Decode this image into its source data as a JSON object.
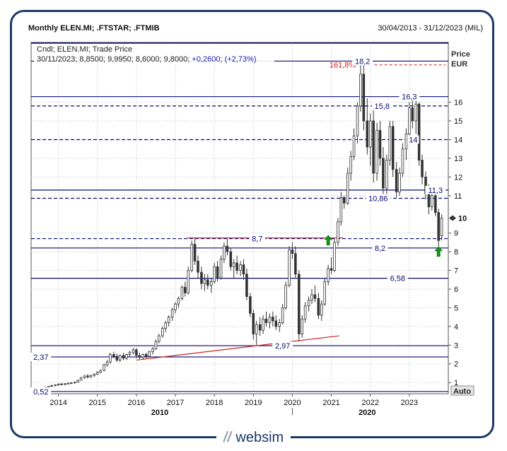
{
  "header": {
    "title": "Monthly ELEN.MI; .FTSTAR; .FTMIB",
    "date_range": "30/04/2013 - 31/12/2023 (MIL)"
  },
  "info": {
    "line1": "Cndl; ELEN.MI; Trade Price",
    "line2_prefix": "30/11/2023; 8,8500; 9,9950; 8,6000; 9,8000;",
    "line2_change": "+0,2600; (+2,73%)"
  },
  "axis": {
    "price_label": "Price",
    "currency_label": "EUR",
    "auto_label": "Auto",
    "last_price_label": "10",
    "y_ticks": [
      "1",
      "2",
      "3",
      "4",
      "5",
      "6",
      "7",
      "8",
      "9",
      "11",
      "12",
      "13",
      "14",
      "15",
      "16"
    ],
    "x_years": [
      "2014",
      "2015",
      "2016",
      "2017",
      "2018",
      "2019",
      "2020",
      "2021",
      "2022",
      "2023"
    ],
    "x_decades": [
      "2010",
      "2020"
    ]
  },
  "colors": {
    "frame": "#1d3a66",
    "level_line": "#0a0a7a",
    "fib_red": "#cc2222",
    "candle": "#333333",
    "arrow": "#1a8a1a"
  },
  "chart_data": {
    "type": "candlestick",
    "title": "Monthly ELEN.MI; .FTSTAR; .FTMIB",
    "ylabel": "Price EUR",
    "ylim": [
      0.4,
      19.2
    ],
    "xlim": [
      2013.3,
      2024.0
    ],
    "candles": [
      {
        "t": 2013.33,
        "o": 0.55,
        "h": 0.58,
        "l": 0.5,
        "c": 0.56
      },
      {
        "t": 2013.42,
        "o": 0.56,
        "h": 0.6,
        "l": 0.54,
        "c": 0.58
      },
      {
        "t": 2013.5,
        "o": 0.58,
        "h": 0.7,
        "l": 0.56,
        "c": 0.68
      },
      {
        "t": 2013.58,
        "o": 0.68,
        "h": 0.72,
        "l": 0.62,
        "c": 0.66
      },
      {
        "t": 2013.67,
        "o": 0.66,
        "h": 0.78,
        "l": 0.64,
        "c": 0.75
      },
      {
        "t": 2013.75,
        "o": 0.75,
        "h": 0.82,
        "l": 0.7,
        "c": 0.8
      },
      {
        "t": 2013.83,
        "o": 0.8,
        "h": 0.88,
        "l": 0.76,
        "c": 0.84
      },
      {
        "t": 2013.92,
        "o": 0.84,
        "h": 0.9,
        "l": 0.8,
        "c": 0.87
      },
      {
        "t": 2014.0,
        "o": 0.87,
        "h": 0.95,
        "l": 0.82,
        "c": 0.92
      },
      {
        "t": 2014.08,
        "o": 0.92,
        "h": 0.98,
        "l": 0.86,
        "c": 0.9
      },
      {
        "t": 2014.17,
        "o": 0.9,
        "h": 0.96,
        "l": 0.85,
        "c": 0.94
      },
      {
        "t": 2014.25,
        "o": 0.94,
        "h": 1.0,
        "l": 0.9,
        "c": 0.96
      },
      {
        "t": 2014.33,
        "o": 0.96,
        "h": 1.02,
        "l": 0.92,
        "c": 0.98
      },
      {
        "t": 2014.42,
        "o": 0.98,
        "h": 1.05,
        "l": 0.94,
        "c": 1.02
      },
      {
        "t": 2014.5,
        "o": 1.02,
        "h": 1.15,
        "l": 1.0,
        "c": 1.12
      },
      {
        "t": 2014.58,
        "o": 1.12,
        "h": 1.3,
        "l": 1.1,
        "c": 1.26
      },
      {
        "t": 2014.67,
        "o": 1.26,
        "h": 1.4,
        "l": 1.2,
        "c": 1.35
      },
      {
        "t": 2014.75,
        "o": 1.35,
        "h": 1.45,
        "l": 1.22,
        "c": 1.3
      },
      {
        "t": 2014.83,
        "o": 1.3,
        "h": 1.42,
        "l": 1.25,
        "c": 1.38
      },
      {
        "t": 2014.92,
        "o": 1.38,
        "h": 1.5,
        "l": 1.3,
        "c": 1.45
      },
      {
        "t": 2015.0,
        "o": 1.45,
        "h": 1.6,
        "l": 1.4,
        "c": 1.55
      },
      {
        "t": 2015.08,
        "o": 1.55,
        "h": 1.7,
        "l": 1.5,
        "c": 1.65
      },
      {
        "t": 2015.17,
        "o": 1.65,
        "h": 2.0,
        "l": 1.6,
        "c": 1.95
      },
      {
        "t": 2015.25,
        "o": 1.95,
        "h": 2.2,
        "l": 1.85,
        "c": 2.1
      },
      {
        "t": 2015.33,
        "o": 2.1,
        "h": 2.6,
        "l": 2.0,
        "c": 2.5
      },
      {
        "t": 2015.42,
        "o": 2.5,
        "h": 2.65,
        "l": 2.3,
        "c": 2.4
      },
      {
        "t": 2015.5,
        "o": 2.4,
        "h": 2.55,
        "l": 2.1,
        "c": 2.2
      },
      {
        "t": 2015.58,
        "o": 2.2,
        "h": 2.5,
        "l": 2.1,
        "c": 2.45
      },
      {
        "t": 2015.67,
        "o": 2.45,
        "h": 2.6,
        "l": 2.2,
        "c": 2.3
      },
      {
        "t": 2015.75,
        "o": 2.3,
        "h": 2.55,
        "l": 2.2,
        "c": 2.5
      },
      {
        "t": 2015.83,
        "o": 2.5,
        "h": 2.7,
        "l": 2.35,
        "c": 2.6
      },
      {
        "t": 2015.92,
        "o": 2.6,
        "h": 2.85,
        "l": 2.5,
        "c": 2.75
      },
      {
        "t": 2016.0,
        "o": 2.75,
        "h": 2.85,
        "l": 2.3,
        "c": 2.45
      },
      {
        "t": 2016.08,
        "o": 2.45,
        "h": 2.6,
        "l": 2.25,
        "c": 2.35
      },
      {
        "t": 2016.17,
        "o": 2.35,
        "h": 2.55,
        "l": 2.25,
        "c": 2.5
      },
      {
        "t": 2016.25,
        "o": 2.5,
        "h": 2.6,
        "l": 2.3,
        "c": 2.4
      },
      {
        "t": 2016.33,
        "o": 2.4,
        "h": 2.7,
        "l": 2.35,
        "c": 2.65
      },
      {
        "t": 2016.42,
        "o": 2.65,
        "h": 2.9,
        "l": 2.5,
        "c": 2.8
      },
      {
        "t": 2016.5,
        "o": 2.8,
        "h": 3.3,
        "l": 2.75,
        "c": 3.2
      },
      {
        "t": 2016.58,
        "o": 3.2,
        "h": 3.6,
        "l": 3.1,
        "c": 3.5
      },
      {
        "t": 2016.67,
        "o": 3.5,
        "h": 4.0,
        "l": 3.4,
        "c": 3.9
      },
      {
        "t": 2016.75,
        "o": 3.9,
        "h": 4.3,
        "l": 3.7,
        "c": 4.2
      },
      {
        "t": 2016.83,
        "o": 4.2,
        "h": 4.6,
        "l": 4.0,
        "c": 4.5
      },
      {
        "t": 2016.92,
        "o": 4.5,
        "h": 5.0,
        "l": 4.3,
        "c": 4.9
      },
      {
        "t": 2017.0,
        "o": 4.9,
        "h": 5.3,
        "l": 4.7,
        "c": 5.2
      },
      {
        "t": 2017.08,
        "o": 5.2,
        "h": 5.6,
        "l": 5.0,
        "c": 5.5
      },
      {
        "t": 2017.17,
        "o": 5.5,
        "h": 6.2,
        "l": 5.4,
        "c": 6.1
      },
      {
        "t": 2017.25,
        "o": 6.1,
        "h": 6.4,
        "l": 5.6,
        "c": 5.8
      },
      {
        "t": 2017.33,
        "o": 5.8,
        "h": 7.2,
        "l": 5.7,
        "c": 7.0
      },
      {
        "t": 2017.42,
        "o": 7.0,
        "h": 8.6,
        "l": 6.9,
        "c": 8.4
      },
      {
        "t": 2017.5,
        "o": 8.4,
        "h": 8.7,
        "l": 7.3,
        "c": 7.5
      },
      {
        "t": 2017.58,
        "o": 7.5,
        "h": 7.8,
        "l": 6.6,
        "c": 6.9
      },
      {
        "t": 2017.67,
        "o": 6.9,
        "h": 7.2,
        "l": 6.0,
        "c": 6.3
      },
      {
        "t": 2017.75,
        "o": 6.3,
        "h": 6.8,
        "l": 5.9,
        "c": 6.5
      },
      {
        "t": 2017.83,
        "o": 6.5,
        "h": 6.8,
        "l": 6.0,
        "c": 6.2
      },
      {
        "t": 2017.92,
        "o": 6.2,
        "h": 6.6,
        "l": 5.8,
        "c": 6.4
      },
      {
        "t": 2018.0,
        "o": 6.4,
        "h": 7.4,
        "l": 6.3,
        "c": 7.2
      },
      {
        "t": 2018.08,
        "o": 7.2,
        "h": 7.5,
        "l": 6.4,
        "c": 6.6
      },
      {
        "t": 2018.17,
        "o": 6.6,
        "h": 7.8,
        "l": 6.5,
        "c": 7.6
      },
      {
        "t": 2018.25,
        "o": 7.6,
        "h": 8.5,
        "l": 7.4,
        "c": 8.3
      },
      {
        "t": 2018.33,
        "o": 8.3,
        "h": 8.7,
        "l": 7.8,
        "c": 8.0
      },
      {
        "t": 2018.42,
        "o": 8.0,
        "h": 8.2,
        "l": 7.0,
        "c": 7.2
      },
      {
        "t": 2018.5,
        "o": 7.2,
        "h": 7.6,
        "l": 6.6,
        "c": 7.4
      },
      {
        "t": 2018.58,
        "o": 7.4,
        "h": 7.8,
        "l": 6.8,
        "c": 7.0
      },
      {
        "t": 2018.67,
        "o": 7.0,
        "h": 7.5,
        "l": 6.7,
        "c": 7.3
      },
      {
        "t": 2018.75,
        "o": 7.3,
        "h": 7.6,
        "l": 6.5,
        "c": 6.8
      },
      {
        "t": 2018.83,
        "o": 6.8,
        "h": 7.1,
        "l": 5.4,
        "c": 5.6
      },
      {
        "t": 2018.92,
        "o": 5.6,
        "h": 5.8,
        "l": 4.5,
        "c": 4.7
      },
      {
        "t": 2019.0,
        "o": 4.7,
        "h": 4.9,
        "l": 3.3,
        "c": 3.6
      },
      {
        "t": 2019.08,
        "o": 3.6,
        "h": 4.3,
        "l": 3.0,
        "c": 4.1
      },
      {
        "t": 2019.17,
        "o": 4.1,
        "h": 4.5,
        "l": 3.5,
        "c": 3.8
      },
      {
        "t": 2019.25,
        "o": 3.8,
        "h": 4.6,
        "l": 3.6,
        "c": 4.4
      },
      {
        "t": 2019.33,
        "o": 4.4,
        "h": 4.8,
        "l": 4.0,
        "c": 4.2
      },
      {
        "t": 2019.42,
        "o": 4.2,
        "h": 4.7,
        "l": 3.9,
        "c": 4.5
      },
      {
        "t": 2019.5,
        "o": 4.5,
        "h": 4.8,
        "l": 4.0,
        "c": 4.3
      },
      {
        "t": 2019.58,
        "o": 4.3,
        "h": 4.6,
        "l": 3.8,
        "c": 4.0
      },
      {
        "t": 2019.67,
        "o": 4.0,
        "h": 4.4,
        "l": 3.7,
        "c": 4.2
      },
      {
        "t": 2019.75,
        "o": 4.2,
        "h": 5.2,
        "l": 4.1,
        "c": 5.0
      },
      {
        "t": 2019.83,
        "o": 5.0,
        "h": 6.4,
        "l": 4.9,
        "c": 6.2
      },
      {
        "t": 2019.92,
        "o": 6.2,
        "h": 8.3,
        "l": 6.1,
        "c": 8.1
      },
      {
        "t": 2020.0,
        "o": 8.1,
        "h": 8.5,
        "l": 7.6,
        "c": 7.9
      },
      {
        "t": 2020.08,
        "o": 7.9,
        "h": 8.3,
        "l": 6.6,
        "c": 6.8
      },
      {
        "t": 2020.17,
        "o": 6.8,
        "h": 7.0,
        "l": 3.2,
        "c": 3.6
      },
      {
        "t": 2020.25,
        "o": 3.6,
        "h": 4.6,
        "l": 3.4,
        "c": 4.4
      },
      {
        "t": 2020.33,
        "o": 4.4,
        "h": 5.3,
        "l": 4.2,
        "c": 5.1
      },
      {
        "t": 2020.42,
        "o": 5.1,
        "h": 5.6,
        "l": 4.8,
        "c": 5.4
      },
      {
        "t": 2020.5,
        "o": 5.4,
        "h": 6.0,
        "l": 5.2,
        "c": 5.7
      },
      {
        "t": 2020.58,
        "o": 5.7,
        "h": 6.2,
        "l": 5.3,
        "c": 5.5
      },
      {
        "t": 2020.67,
        "o": 5.5,
        "h": 5.8,
        "l": 4.4,
        "c": 4.6
      },
      {
        "t": 2020.75,
        "o": 4.6,
        "h": 5.4,
        "l": 4.3,
        "c": 5.2
      },
      {
        "t": 2020.83,
        "o": 5.2,
        "h": 6.6,
        "l": 5.1,
        "c": 6.4
      },
      {
        "t": 2020.92,
        "o": 6.4,
        "h": 7.3,
        "l": 6.2,
        "c": 7.1
      },
      {
        "t": 2021.0,
        "o": 7.1,
        "h": 7.7,
        "l": 6.8,
        "c": 7.0
      },
      {
        "t": 2021.08,
        "o": 7.0,
        "h": 8.7,
        "l": 6.9,
        "c": 8.5
      },
      {
        "t": 2021.17,
        "o": 8.5,
        "h": 9.8,
        "l": 8.3,
        "c": 9.6
      },
      {
        "t": 2021.25,
        "o": 9.6,
        "h": 11.2,
        "l": 9.4,
        "c": 10.9
      },
      {
        "t": 2021.33,
        "o": 10.9,
        "h": 11.0,
        "l": 10.3,
        "c": 10.6
      },
      {
        "t": 2021.42,
        "o": 10.6,
        "h": 12.5,
        "l": 10.5,
        "c": 12.2
      },
      {
        "t": 2021.5,
        "o": 12.2,
        "h": 13.4,
        "l": 11.8,
        "c": 13.1
      },
      {
        "t": 2021.58,
        "o": 13.1,
        "h": 14.6,
        "l": 12.9,
        "c": 14.2
      },
      {
        "t": 2021.67,
        "o": 14.2,
        "h": 16.0,
        "l": 13.8,
        "c": 15.8
      },
      {
        "t": 2021.75,
        "o": 15.8,
        "h": 18.2,
        "l": 15.5,
        "c": 17.5
      },
      {
        "t": 2021.83,
        "o": 17.5,
        "h": 18.0,
        "l": 14.5,
        "c": 15.0
      },
      {
        "t": 2021.92,
        "o": 15.0,
        "h": 16.2,
        "l": 13.2,
        "c": 13.6
      },
      {
        "t": 2022.0,
        "o": 13.6,
        "h": 15.4,
        "l": 12.6,
        "c": 15.0
      },
      {
        "t": 2022.08,
        "o": 15.0,
        "h": 15.6,
        "l": 11.7,
        "c": 12.2
      },
      {
        "t": 2022.17,
        "o": 12.2,
        "h": 14.9,
        "l": 11.8,
        "c": 14.5
      },
      {
        "t": 2022.25,
        "o": 14.5,
        "h": 15.0,
        "l": 12.6,
        "c": 13.0
      },
      {
        "t": 2022.33,
        "o": 13.0,
        "h": 13.6,
        "l": 11.0,
        "c": 11.4
      },
      {
        "t": 2022.42,
        "o": 11.4,
        "h": 13.2,
        "l": 11.0,
        "c": 12.9
      },
      {
        "t": 2022.5,
        "o": 12.9,
        "h": 15.0,
        "l": 12.6,
        "c": 14.7
      },
      {
        "t": 2022.58,
        "o": 14.7,
        "h": 15.0,
        "l": 12.0,
        "c": 12.4
      },
      {
        "t": 2022.67,
        "o": 12.4,
        "h": 12.8,
        "l": 10.9,
        "c": 11.2
      },
      {
        "t": 2022.75,
        "o": 11.2,
        "h": 12.5,
        "l": 11.0,
        "c": 12.2
      },
      {
        "t": 2022.83,
        "o": 12.2,
        "h": 13.8,
        "l": 12.0,
        "c": 13.5
      },
      {
        "t": 2022.92,
        "o": 13.5,
        "h": 14.6,
        "l": 12.9,
        "c": 14.3
      },
      {
        "t": 2023.0,
        "o": 14.3,
        "h": 16.0,
        "l": 14.0,
        "c": 15.7
      },
      {
        "t": 2023.08,
        "o": 15.7,
        "h": 16.2,
        "l": 14.6,
        "c": 15.0
      },
      {
        "t": 2023.17,
        "o": 15.0,
        "h": 16.3,
        "l": 14.3,
        "c": 15.9
      },
      {
        "t": 2023.25,
        "o": 15.9,
        "h": 16.0,
        "l": 12.6,
        "c": 12.9
      },
      {
        "t": 2023.33,
        "o": 12.9,
        "h": 13.2,
        "l": 11.6,
        "c": 12.0
      },
      {
        "t": 2023.42,
        "o": 12.0,
        "h": 12.3,
        "l": 10.8,
        "c": 11.1
      },
      {
        "t": 2023.5,
        "o": 11.1,
        "h": 11.6,
        "l": 10.0,
        "c": 10.4
      },
      {
        "t": 2023.58,
        "o": 10.4,
        "h": 11.3,
        "l": 10.2,
        "c": 11.0
      },
      {
        "t": 2023.67,
        "o": 11.0,
        "h": 11.2,
        "l": 9.9,
        "c": 10.1
      },
      {
        "t": 2023.75,
        "o": 10.1,
        "h": 10.3,
        "l": 8.3,
        "c": 8.6
      },
      {
        "t": 2023.83,
        "o": 8.85,
        "h": 9.995,
        "l": 8.6,
        "c": 9.8
      }
    ],
    "solid_levels": [
      {
        "value": 18.2,
        "label": "18,2"
      },
      {
        "value": 16.3,
        "label": "16,3"
      },
      {
        "value": 11.3,
        "label": "11,3"
      },
      {
        "value": 8.2,
        "label": "8,2"
      },
      {
        "value": 6.58,
        "label": "6,58"
      },
      {
        "value": 2.97,
        "label": "2,97"
      },
      {
        "value": 2.37,
        "label": "2,37"
      },
      {
        "value": 0.52,
        "label": "0,52"
      }
    ],
    "dashed_levels": [
      {
        "value": 15.8,
        "label": "15,8"
      },
      {
        "value": 14.0,
        "label": "14"
      },
      {
        "value": 10.86,
        "label": "10,86"
      },
      {
        "value": 8.7,
        "label": "8,7"
      }
    ],
    "fib_level": {
      "value": 18.0,
      "label": "161,8%"
    },
    "resistance_line": {
      "value": 8.7,
      "t_start": 2017.3,
      "t_end": 2021.3
    },
    "trendline": {
      "t_start": 2016.0,
      "v_start": 2.2,
      "t_end": 2021.2,
      "v_end": 3.5
    },
    "arrows": [
      {
        "t": 2020.92,
        "v": 8.6
      },
      {
        "t": 2023.75,
        "v": 8.0
      }
    ],
    "last_price": 9.8
  },
  "footer": {
    "logo_text": "websim",
    "logo_mark": "//"
  }
}
